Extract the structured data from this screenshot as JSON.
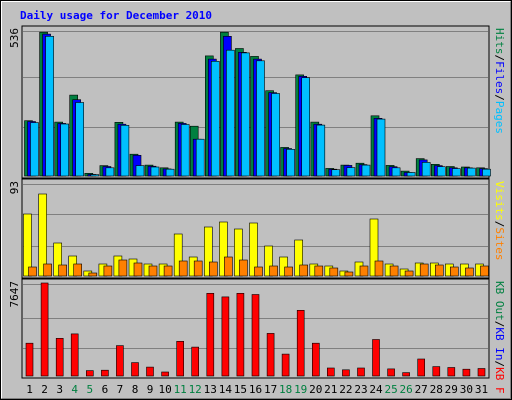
{
  "chart_data": {
    "type": "bar",
    "title": "Daily usage for December 2010",
    "categories": [
      "1",
      "2",
      "3",
      "4",
      "5",
      "6",
      "7",
      "8",
      "9",
      "10",
      "11",
      "12",
      "13",
      "14",
      "15",
      "16",
      "17",
      "18",
      "19",
      "20",
      "21",
      "22",
      "23",
      "24",
      "25",
      "26",
      "27",
      "28",
      "29",
      "30",
      "31"
    ],
    "weekend_days": [
      "4",
      "5",
      "11",
      "12",
      "18",
      "19",
      "25",
      "26"
    ],
    "panels": [
      {
        "name": "hits-files-pages",
        "ymax_label": "536",
        "ymax": 536,
        "series": [
          {
            "name": "Hits",
            "color": "#008040",
            "values": [
              203,
              528,
              198,
              297,
              10,
              38,
              197,
              80,
              40,
              30,
              198,
              183,
              441,
              528,
              468,
              439,
              313,
              105,
              371,
              198,
              28,
              40,
              47,
              221,
              39,
              18,
              64,
              43,
              35,
              33,
              30
            ]
          },
          {
            "name": "Files",
            "color": "#0000ff",
            "values": [
              200,
              521,
              193,
              280,
              6,
              35,
              190,
              76,
              36,
              26,
              193,
              135,
              429,
              513,
              454,
              429,
              306,
              101,
              366,
              190,
              25,
              39,
              42,
              212,
              34,
              13,
              59,
              38,
              30,
              30,
              27
            ]
          },
          {
            "name": "Pages",
            "color": "#00c0ff",
            "values": [
              196,
              513,
              191,
              270,
              5,
              30,
              186,
              38,
              33,
              25,
              189,
              135,
              421,
              462,
              452,
              423,
              303,
              98,
              361,
              187,
              23,
              31,
              40,
              209,
              30,
              13,
              50,
              34,
              27,
              29,
              25
            ]
          }
        ],
        "legend": [
          {
            "text": "Hits",
            "color": "#008040"
          },
          {
            "text": "/",
            "color": "#000000"
          },
          {
            "text": "Files",
            "color": "#0000ff"
          },
          {
            "text": "/",
            "color": "#000000"
          },
          {
            "text": "Pages",
            "color": "#00c0ff"
          }
        ]
      },
      {
        "name": "visits-sites",
        "ymax_label": "93",
        "ymax": 93,
        "series": [
          {
            "name": "Visits",
            "color": "#ffff00",
            "values": [
              62,
              82,
              33,
              20,
              5,
              12,
              20,
              17,
              12,
              12,
              42,
              19,
              49,
              54,
              47,
              53,
              30,
              19,
              36,
              12,
              10,
              5,
              14,
              57,
              12,
              7,
              13,
              13,
              12,
              12,
              12
            ]
          },
          {
            "name": "Sites",
            "color": "#ff8000",
            "values": [
              9,
              12,
              11,
              12,
              3,
              10,
              16,
              13,
              10,
              10,
              15,
              15,
              14,
              19,
              16,
              9,
              10,
              9,
              11,
              10,
              8,
              4,
              10,
              15,
              10,
              5,
              12,
              11,
              9,
              8,
              10
            ]
          }
        ],
        "legend": [
          {
            "text": "Visits",
            "color": "#ffff00"
          },
          {
            "text": "/",
            "color": "#000000"
          },
          {
            "text": "Sites",
            "color": "#ff8000"
          }
        ]
      },
      {
        "name": "kbytes",
        "ymax_label": "7647",
        "ymax": 7647,
        "series": [
          {
            "name": "KB F",
            "color": "#ff0000",
            "values": [
              2700,
              7647,
              3100,
              3460,
              440,
              480,
              2500,
              1100,
              730,
              330,
              2850,
              2380,
              6800,
              6500,
              6800,
              6700,
              3500,
              1800,
              5400,
              2700,
              660,
              510,
              660,
              3000,
              580,
              280,
              1400,
              770,
              700,
              560,
              620
            ]
          }
        ],
        "legend": [
          {
            "text": "KB Out",
            "color": "#008040"
          },
          {
            "text": "/",
            "color": "#000000"
          },
          {
            "text": "KB In",
            "color": "#0000ff"
          },
          {
            "text": "/",
            "color": "#000000"
          },
          {
            "text": "KB F",
            "color": "#ff0000"
          }
        ]
      }
    ],
    "colors": {
      "background": "#c0c0c0",
      "title": "#0000ff",
      "weekday_label": "#000000",
      "weekend_label": "#008040",
      "gridline": "#808080"
    },
    "grid": true
  }
}
